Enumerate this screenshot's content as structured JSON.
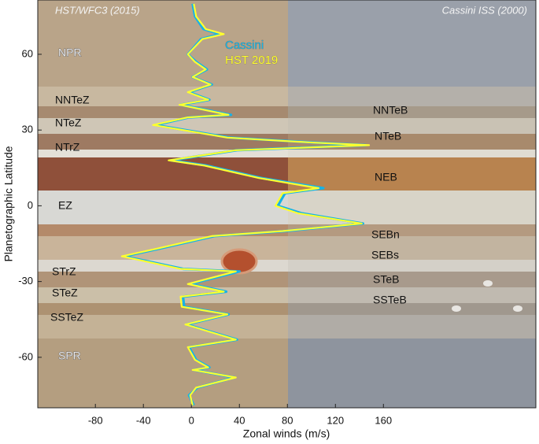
{
  "chart_data": {
    "type": "line",
    "left_title": "HST/WFC3 (2015)",
    "right_title": "Cassini ISS (2000)",
    "xlabel": "Zonal winds (m/s)",
    "ylabel": "Planetographic Latitude",
    "y": [
      80,
      75,
      70,
      68,
      66,
      60,
      57,
      54,
      51,
      48,
      45,
      42,
      40,
      36,
      35,
      32,
      27,
      25,
      24,
      22,
      18,
      16,
      11,
      7,
      5,
      0,
      -3,
      -7,
      -10,
      -12,
      -17,
      -20,
      -25,
      -26,
      -31,
      -34,
      -36,
      -40,
      -43,
      -47,
      -53,
      -56,
      -61,
      -64,
      -65,
      -68,
      -72,
      -75,
      -79
    ],
    "series": [
      {
        "name": "Cassini",
        "color": "#17b3e6",
        "values": [
          1,
          3,
          10,
          24,
          8,
          -3,
          4,
          13,
          1,
          17,
          -2,
          15,
          -9,
          33,
          -2,
          -30,
          32,
          104,
          145,
          38,
          -17,
          12,
          58,
          110,
          78,
          72,
          92,
          143,
          78,
          19,
          -27,
          -56,
          -7,
          40,
          -1,
          29,
          -7,
          -6,
          31,
          -4,
          38,
          -2,
          4,
          15,
          2,
          36,
          5,
          -2,
          2
        ]
      },
      {
        "name": "HST 2019",
        "color": "#ffff2e",
        "values": [
          2,
          4,
          12,
          27,
          9,
          -3,
          3,
          12,
          1,
          16,
          -3,
          14,
          -10,
          31,
          -3,
          -32,
          30,
          102,
          148,
          37,
          -19,
          10,
          56,
          106,
          76,
          70,
          89,
          142,
          76,
          17,
          -29,
          -58,
          -9,
          37,
          -3,
          27,
          -9,
          -8,
          30,
          -5,
          37,
          -3,
          3,
          14,
          1,
          37,
          4,
          -1,
          1
        ]
      }
    ],
    "xlim": [
      -128,
      287
    ],
    "ylim": [
      -80,
      81.5
    ],
    "xticks": [
      -80,
      -40,
      0,
      40,
      80,
      120,
      160
    ],
    "yticks": [
      60,
      30,
      0,
      -30,
      -60
    ],
    "legend": "upper-center",
    "annotations": [
      "NPR",
      "NNTeZ",
      "NTeZ",
      "NTrZ",
      "EZ",
      "STrZ",
      "STeZ",
      "SSTeZ",
      "SPR",
      "NNTeB",
      "NTeB",
      "NEB",
      "SEBn",
      "SEBs",
      "STeB",
      "SSTeB"
    ]
  }
}
